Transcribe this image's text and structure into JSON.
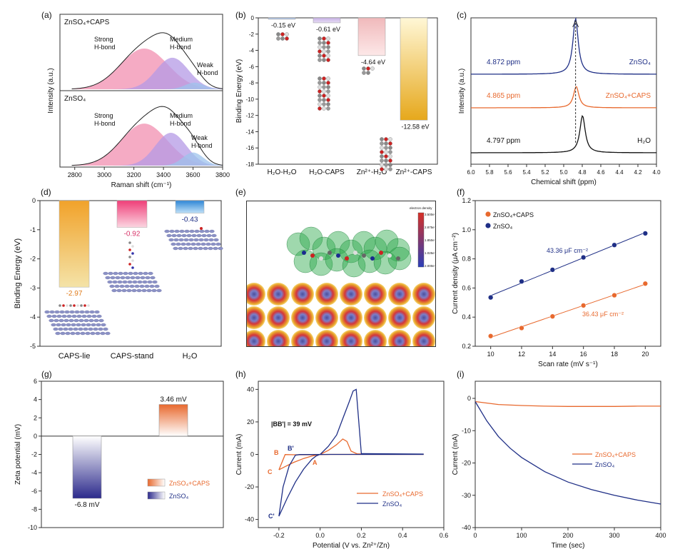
{
  "panel_labels": {
    "a": "(a)",
    "b": "(b)",
    "c": "(c)",
    "d": "(d)",
    "e": "(e)",
    "f": "(f)",
    "g": "(g)",
    "h": "(h)",
    "i": "(i)"
  },
  "colors": {
    "pink": "#f28fb0",
    "purple": "#b49ae6",
    "blue_light": "#9dc3ec",
    "envelope": "#222222",
    "zn_blue": "#1f2f86",
    "orange": "#e8692e",
    "black": "#111111",
    "gold": "#e6a81c",
    "magenta": "#ef4a7a",
    "sky": "#3f8fd9",
    "ribbon": "#2aa84a"
  },
  "chart_data": [
    {
      "id": "a",
      "type": "area",
      "xlabel": "Raman shift (cm⁻¹)",
      "ylabel": "Intensity (a.u.)",
      "xlim": [
        2700,
        3800
      ],
      "xticks": [
        2800,
        3000,
        3200,
        3400,
        3600,
        3800
      ],
      "subpanels": [
        {
          "name": "ZnSO₄+CAPS",
          "peaks": [
            {
              "label": "Strong H-bond",
              "center": 3270,
              "height": 0.62,
              "width": 160
            },
            {
              "label": "Medium H-bond",
              "center": 3460,
              "height": 0.48,
              "width": 110
            },
            {
              "label": "Weak H-bond",
              "center": 3610,
              "height": 0.1,
              "width": 65
            }
          ]
        },
        {
          "name": "ZnSO₄",
          "peaks": [
            {
              "label": "Strong H-bond",
              "center": 3270,
              "height": 0.64,
              "width": 155
            },
            {
              "label": "Medium H-bond",
              "center": 3450,
              "height": 0.5,
              "width": 105
            },
            {
              "label": "Weak H-bond",
              "center": 3600,
              "height": 0.2,
              "width": 70
            }
          ]
        }
      ],
      "annotations": [
        {
          "line1": "Strong",
          "line2": "H-bond"
        },
        {
          "line1": "Medium",
          "line2": "H-bond"
        },
        {
          "line1": "Weak",
          "line2": "H-bond"
        }
      ]
    },
    {
      "id": "b",
      "type": "bar",
      "categories": [
        "H₂O-H₂O",
        "H₂O-CAPS",
        "Zn²⁺-H₂O",
        "Zn²⁺-CAPS"
      ],
      "values": [
        -0.15,
        -0.61,
        -4.64,
        -12.58
      ],
      "value_labels": [
        "-0.15 eV",
        "-0.61 eV",
        "-4.64 eV",
        "-12.58 eV"
      ],
      "ylabel": "Binding Energy (eV)",
      "ylim": [
        -18,
        0
      ],
      "yticks": [
        0,
        -2,
        -4,
        -6,
        -8,
        -10,
        -12,
        -14,
        -16,
        -18
      ]
    },
    {
      "id": "c",
      "type": "line",
      "xlabel": "Chemical shift (ppm)",
      "ylabel": "Intensity (a.u.)",
      "xlim": [
        6.0,
        4.0
      ],
      "xticks": [
        6.0,
        5.8,
        5.6,
        5.4,
        5.2,
        5.0,
        4.8,
        4.6,
        4.4,
        4.2,
        4.0
      ],
      "series": [
        {
          "name": "ZnSO₄",
          "peak_ppm": 4.872,
          "peak_label": "4.872 ppm",
          "height": 1.0
        },
        {
          "name": "ZnSO₄+CAPS",
          "peak_ppm": 4.865,
          "peak_label": "4.865 ppm",
          "height": 0.45
        },
        {
          "name": "H₂O",
          "peak_ppm": 4.797,
          "peak_label": "4.797 ppm",
          "height": 0.72
        }
      ]
    },
    {
      "id": "d",
      "type": "bar",
      "categories": [
        "CAPS-lie",
        "CAPS-stand",
        "H₂O"
      ],
      "values": [
        -2.97,
        -0.92,
        -0.43
      ],
      "value_labels": [
        "-2.97",
        "-0.92",
        "-0.43"
      ],
      "ylabel": "Binding Energy (eV)",
      "ylim": [
        -5,
        0
      ],
      "yticks": [
        0,
        -1,
        -2,
        -3,
        -4,
        -5
      ]
    },
    {
      "id": "f",
      "type": "scatter",
      "xlabel": "Scan rate (mV s⁻¹)",
      "ylabel": "Current density (μA cm⁻²)",
      "xlim": [
        9,
        21
      ],
      "ylim": [
        0.2,
        1.2
      ],
      "xticks": [
        10,
        12,
        14,
        16,
        18,
        20
      ],
      "yticks": [
        0.2,
        0.4,
        0.6,
        0.8,
        1.0,
        1.2
      ],
      "x": [
        10,
        12,
        14,
        16,
        18,
        20
      ],
      "series": [
        {
          "name": "ZnSO₄+CAPS",
          "values": [
            0.27,
            0.325,
            0.405,
            0.48,
            0.55,
            0.63
          ],
          "fit_label": "36.43 μF cm⁻²"
        },
        {
          "name": "ZnSO₄",
          "values": [
            0.535,
            0.645,
            0.725,
            0.81,
            0.895,
            0.975
          ],
          "fit_label": "43.36 μF cm⁻²"
        }
      ]
    },
    {
      "id": "g",
      "type": "bar",
      "categories": [
        "ZnSO₄",
        "ZnSO₄+CAPS"
      ],
      "values": [
        -6.8,
        3.46
      ],
      "value_labels": [
        "-6.8 mV",
        "3.46 mV"
      ],
      "ylabel": "Zeta potential (mV)",
      "ylim": [
        -10,
        6
      ],
      "yticks": [
        6,
        4,
        2,
        0,
        -2,
        -4,
        -6,
        -8,
        -10
      ],
      "legend": [
        "ZnSO₄+CAPS",
        "ZnSO₄"
      ]
    },
    {
      "id": "h",
      "type": "line",
      "xlabel": "Potential (V vs. Zn²⁺/Zn)",
      "ylabel": "Current (mA)",
      "xlim": [
        -0.3,
        0.6
      ],
      "ylim": [
        -45,
        45
      ],
      "xticks": [
        -0.2,
        0.0,
        0.2,
        0.4,
        0.6
      ],
      "yticks": [
        -40,
        -20,
        0,
        20,
        40
      ],
      "annotation": "|BB'| = 39 mV",
      "point_labels": [
        "B",
        "B'",
        "C",
        "C'",
        "A"
      ],
      "series": [
        {
          "name": "ZnSO₄+CAPS",
          "x": [
            -0.2,
            -0.17,
            -0.13,
            -0.08,
            -0.04,
            -0.02,
            0.0,
            0.04,
            0.08,
            0.11,
            0.13,
            0.15,
            0.18,
            0.5,
            0.5,
            0.15,
            0.05,
            -0.05,
            -0.12,
            -0.17,
            -0.2
          ],
          "y": [
            -9.5,
            -7.5,
            -5,
            -2.5,
            -1,
            -0.5,
            0,
            2.5,
            6,
            9.5,
            8,
            2,
            0.3,
            0.1,
            0,
            0,
            0,
            -0.2,
            -0.2,
            -0.1,
            -9.5
          ]
        },
        {
          "name": "ZnSO₄",
          "x": [
            -0.2,
            -0.16,
            -0.12,
            -0.08,
            -0.04,
            -0.02,
            0.0,
            0.04,
            0.08,
            0.11,
            0.14,
            0.16,
            0.175,
            0.2,
            0.5,
            0.5,
            0.15,
            0.05,
            -0.05,
            -0.1,
            -0.12,
            -0.15,
            -0.18,
            -0.2
          ],
          "y": [
            -38,
            -27,
            -17,
            -9,
            -3,
            -1,
            0,
            5,
            12,
            22,
            32,
            39,
            40,
            0.5,
            0.2,
            0,
            0,
            0,
            -0.1,
            -0.1,
            -0.5,
            -7,
            -20,
            -38
          ]
        }
      ]
    },
    {
      "id": "i",
      "type": "line",
      "xlabel": "Time (sec)",
      "ylabel": "Current (mA)",
      "xlim": [
        0,
        400
      ],
      "ylim": [
        -40,
        0
      ],
      "xticks": [
        0,
        100,
        200,
        300,
        400
      ],
      "yticks": [
        0,
        -10,
        -20,
        -30,
        -40
      ],
      "series": [
        {
          "name": "ZnSO₄+CAPS",
          "x": [
            0,
            50,
            100,
            150,
            200,
            250,
            300,
            350,
            400
          ],
          "y": [
            -1,
            -1.9,
            -2.2,
            -2.4,
            -2.5,
            -2.5,
            -2.5,
            -2.4,
            -2.4
          ]
        },
        {
          "name": "ZnSO₄",
          "x": [
            0,
            25,
            50,
            75,
            100,
            150,
            200,
            250,
            300,
            350,
            400
          ],
          "y": [
            -1,
            -7,
            -11.8,
            -15.4,
            -18.3,
            -22.7,
            -25.9,
            -28.2,
            -30,
            -31.5,
            -32.7
          ]
        }
      ]
    }
  ],
  "panel_e": {
    "colorbar_title": "electron density",
    "colorbar_ticks": [
      "3.500e⁻³",
      "2.875e⁻³",
      "1.850e⁻³",
      "1.025e⁻³",
      "2.000e⁻³"
    ]
  }
}
